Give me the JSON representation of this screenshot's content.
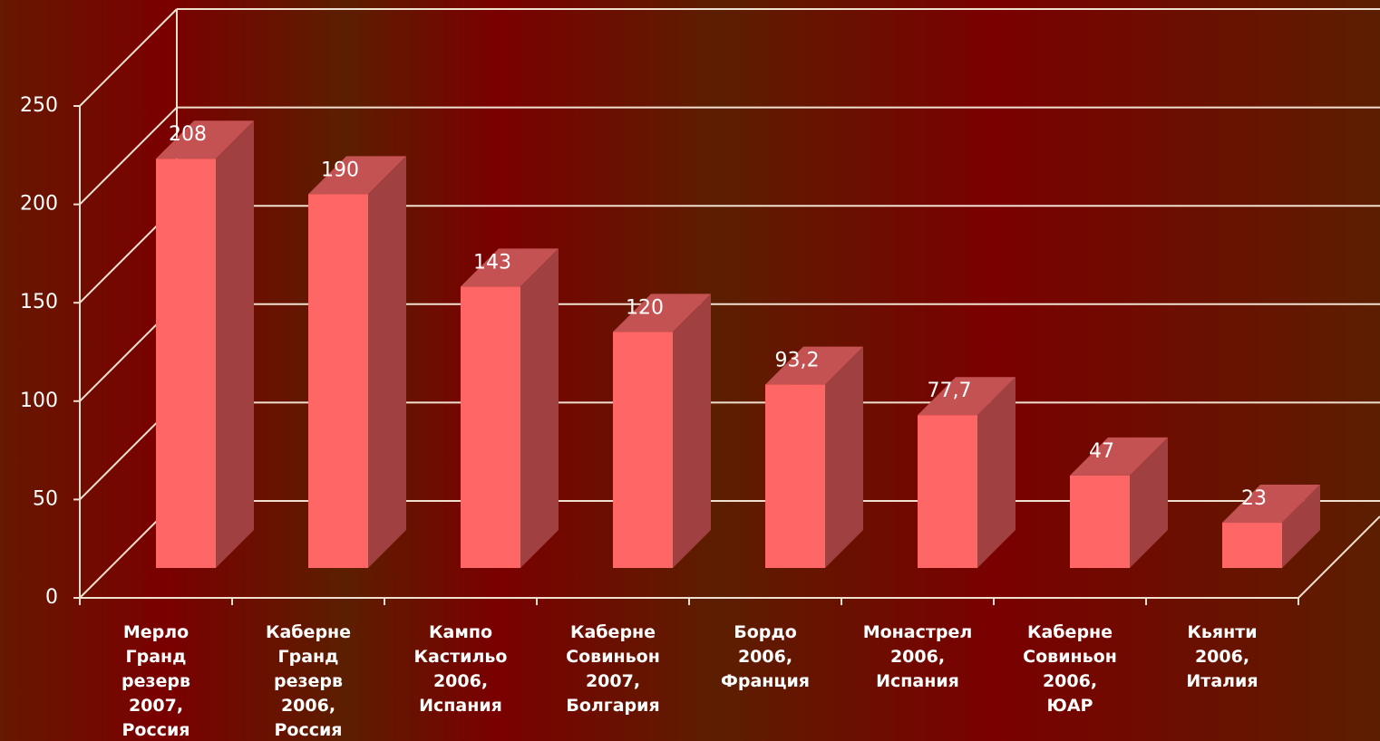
{
  "chart_data": {
    "type": "bar3d",
    "categories": [
      "Мерло Гранд резерв 2007, Россия",
      "Каберне Гранд резерв 2006, Россия",
      "Кампо Кастильо 2006, Испания",
      "Каберне Совиньон 2007, Болгария",
      "Бордо 2006, Франция",
      "Монастрел 2006, Испания",
      "Каберне Совиньон 2006, ЮАР",
      "Кьянти 2006, Италия"
    ],
    "values": [
      208,
      190,
      143,
      120,
      93.2,
      77.7,
      47,
      23
    ],
    "value_labels": [
      "208",
      "190",
      "143",
      "120",
      "93,2",
      "77,7",
      "47",
      "23"
    ],
    "color": "#ff6666",
    "ylim": [
      0,
      250
    ],
    "yticks": [
      0,
      50,
      100,
      150,
      200,
      250
    ],
    "grid": true
  }
}
